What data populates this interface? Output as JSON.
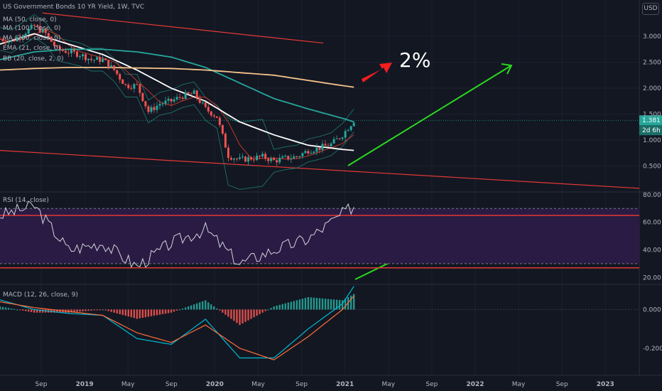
{
  "header": {
    "title": "US Government Bonds 10 YR Yield, 1W, TVC",
    "currency": "USD"
  },
  "legend": {
    "price": [
      "MA (50, close, 0)",
      "MA (100, close, 0)",
      "MA (200, close, 0)",
      "EMA (21, close, 0)",
      "BB (20, close, 2, 0)"
    ],
    "rsi": "RSI (14, close)",
    "macd": "MACD (12, 26, close, 9)"
  },
  "annotation": {
    "text": "2%"
  },
  "last_price": {
    "value": "1.381",
    "countdown": "2d 6h"
  },
  "colors": {
    "background": "#131722",
    "up": "#26a69a",
    "down": "#ef5350",
    "ma50": "#ffffff",
    "ma100": "#26a69a",
    "ma200": "#f5c38a",
    "channel": "#e53935",
    "arrow_green": "#2bd81f",
    "arrow_red": "#f21e1e",
    "rsi_line": "#d1d4dc",
    "rsi_band": "#2a1b44",
    "macd_line": "#00bcd4",
    "signal_line": "#ff6d3a"
  },
  "chart_data": [
    {
      "type": "line",
      "title": "US Government Bonds 10 YR Yield, 1W, TVC",
      "ylim": [
        0.0,
        3.7
      ],
      "y_ticks": [
        "0.500",
        "1.000",
        "1.500",
        "2.000",
        "2.500",
        "3.000"
      ],
      "x_ticks": [
        "Sep",
        "2019",
        "May",
        "Sep",
        "2020",
        "May",
        "Sep",
        "2021",
        "May",
        "Sep",
        "2022",
        "May",
        "Sep",
        "2023"
      ],
      "x_range": [
        "2018-07",
        "2023-03"
      ],
      "price_series": {
        "name": "US10Y weekly close",
        "x": [
          "2018-07",
          "2018-08",
          "2018-09",
          "2018-10",
          "2018-11",
          "2018-12",
          "2019-01",
          "2019-02",
          "2019-03",
          "2019-04",
          "2019-05",
          "2019-06",
          "2019-07",
          "2019-08",
          "2019-09",
          "2019-10",
          "2019-11",
          "2019-12",
          "2020-01",
          "2020-02",
          "2020-03",
          "2020-04",
          "2020-05",
          "2020-06",
          "2020-07",
          "2020-08",
          "2020-09",
          "2020-10",
          "2020-11",
          "2020-12",
          "2021-01",
          "2021-02"
        ],
        "y": [
          2.95,
          2.9,
          3.05,
          3.2,
          3.05,
          2.75,
          2.7,
          2.65,
          2.55,
          2.55,
          2.35,
          2.05,
          2.05,
          1.55,
          1.7,
          1.75,
          1.85,
          1.9,
          1.6,
          1.45,
          0.7,
          0.62,
          0.65,
          0.68,
          0.6,
          0.65,
          0.68,
          0.8,
          0.85,
          0.92,
          1.1,
          1.38
        ]
      },
      "ma_lines": [
        {
          "name": "MA (50, close, 0)",
          "x": [
            "2018-07",
            "2018-10",
            "2019-01",
            "2019-04",
            "2019-07",
            "2019-10",
            "2020-01",
            "2020-04",
            "2020-07",
            "2020-10",
            "2021-01",
            "2021-02"
          ],
          "y": [
            2.85,
            3.05,
            2.85,
            2.65,
            2.35,
            2.0,
            1.75,
            1.35,
            1.1,
            0.9,
            0.82,
            0.8
          ]
        },
        {
          "name": "MA (100, close, 0)",
          "x": [
            "2018-07",
            "2018-10",
            "2019-01",
            "2019-04",
            "2019-07",
            "2019-10",
            "2020-01",
            "2020-04",
            "2020-07",
            "2020-10",
            "2021-01",
            "2021-02"
          ],
          "y": [
            2.55,
            2.7,
            2.75,
            2.75,
            2.7,
            2.6,
            2.4,
            2.1,
            1.8,
            1.6,
            1.42,
            1.35
          ]
        },
        {
          "name": "MA (200, close, 0)",
          "x": [
            "2018-07",
            "2018-10",
            "2019-01",
            "2019-04",
            "2019-07",
            "2019-10",
            "2020-01",
            "2020-04",
            "2020-07",
            "2020-10",
            "2021-01",
            "2021-02"
          ],
          "y": [
            2.35,
            2.38,
            2.4,
            2.4,
            2.39,
            2.38,
            2.35,
            2.3,
            2.25,
            2.15,
            2.05,
            2.02
          ]
        }
      ],
      "annotations": [
        "2%"
      ],
      "last_value": 1.381
    },
    {
      "type": "line",
      "title": "RSI (14, close)",
      "ylim": [
        15,
        80
      ],
      "y_ticks": [
        "20.00",
        "40.00",
        "60.00",
        "80.00"
      ],
      "series": [
        {
          "name": "RSI (14, close)",
          "x": [
            "2018-07",
            "2018-10",
            "2019-01",
            "2019-04",
            "2019-07",
            "2019-10",
            "2020-01",
            "2020-04",
            "2020-07",
            "2020-10",
            "2021-01",
            "2021-02"
          ],
          "y": [
            65,
            72,
            40,
            45,
            28,
            45,
            55,
            30,
            40,
            48,
            66,
            72
          ]
        }
      ]
    },
    {
      "type": "bar",
      "title": "MACD (12, 26, close, 9)",
      "ylim": [
        -0.34,
        0.13
      ],
      "y_ticks": [
        "0.000",
        "-0.200"
      ],
      "series": [
        {
          "name": "MACD",
          "x": [
            "2018-07",
            "2018-10",
            "2019-01",
            "2019-04",
            "2019-07",
            "2019-10",
            "2020-01",
            "2020-04",
            "2020-07",
            "2020-10",
            "2021-01",
            "2021-02"
          ],
          "y": [
            0.05,
            0.0,
            -0.02,
            -0.03,
            -0.15,
            -0.18,
            -0.05,
            -0.25,
            -0.25,
            -0.1,
            0.03,
            0.12
          ]
        },
        {
          "name": "Signal",
          "x": [
            "2018-07",
            "2018-10",
            "2019-01",
            "2019-04",
            "2019-07",
            "2019-10",
            "2020-01",
            "2020-04",
            "2020-07",
            "2020-10",
            "2021-01",
            "2021-02"
          ],
          "y": [
            0.04,
            0.01,
            -0.01,
            -0.03,
            -0.12,
            -0.17,
            -0.08,
            -0.2,
            -0.26,
            -0.14,
            0.0,
            0.07
          ]
        }
      ]
    }
  ]
}
